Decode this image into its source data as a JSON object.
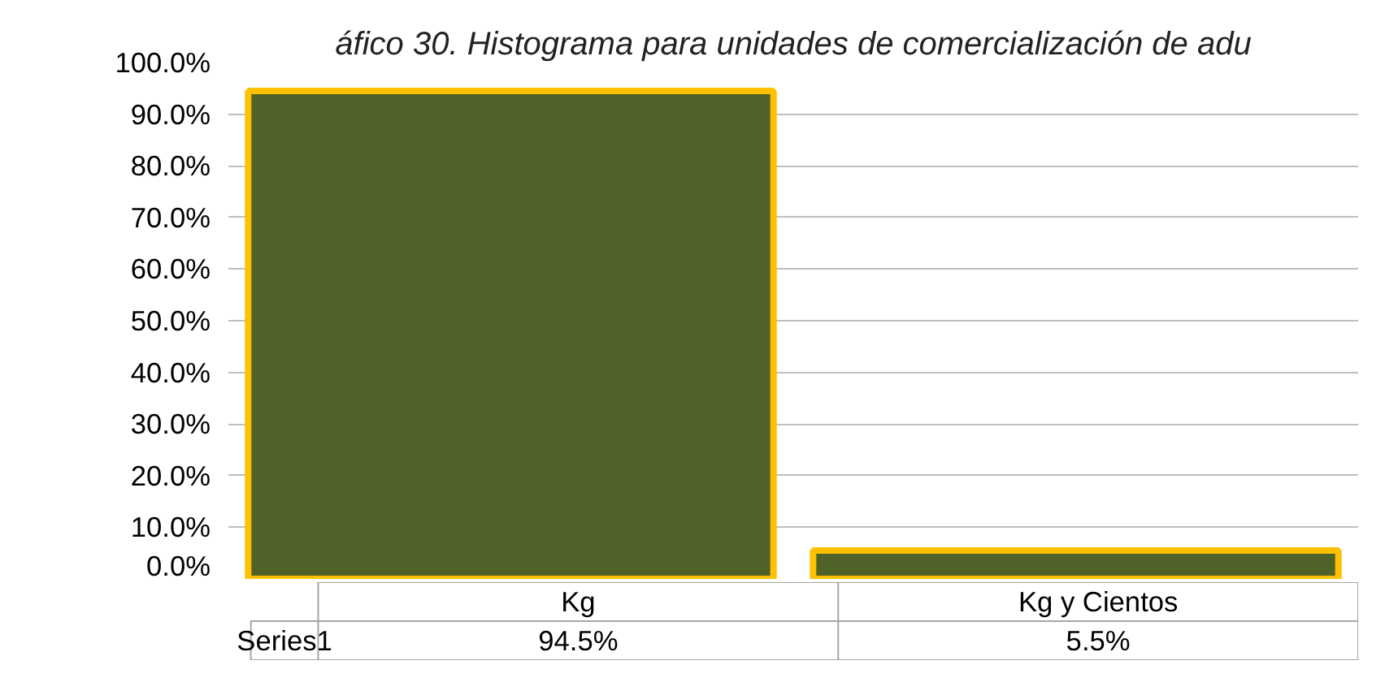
{
  "chart_data": {
    "type": "bar",
    "title": "áfico 30. Histograma para unidades de comercialización de adu",
    "categories": [
      "Kg",
      "Kg y Cientos"
    ],
    "series": [
      {
        "name": "Series1",
        "color": "#4f6228",
        "values": [
          94.5,
          5.5
        ],
        "value_labels": [
          "94.5%",
          "5.5%"
        ]
      }
    ],
    "ylim": [
      0,
      100
    ],
    "yticks": [
      {
        "value": 0,
        "label": "0.0%"
      },
      {
        "value": 10,
        "label": "10.0%"
      },
      {
        "value": 20,
        "label": "20.0%"
      },
      {
        "value": 30,
        "label": "30.0%"
      },
      {
        "value": 40,
        "label": "40.0%"
      },
      {
        "value": 50,
        "label": "50.0%"
      },
      {
        "value": 60,
        "label": "60.0%"
      },
      {
        "value": 70,
        "label": "70.0%"
      },
      {
        "value": 80,
        "label": "80.0%"
      },
      {
        "value": 90,
        "label": "90.0%"
      },
      {
        "value": 100,
        "label": "100.0%"
      }
    ],
    "grid": "y"
  }
}
